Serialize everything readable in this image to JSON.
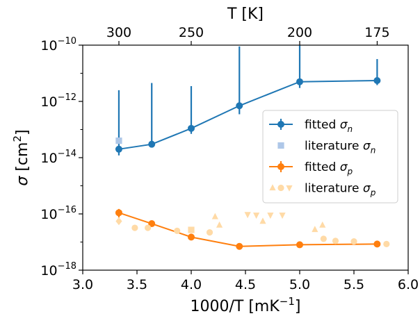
{
  "chart_data": {
    "type": "scatter",
    "xlabel": "1000/T [mK",
    "xlabel_sup": "−1",
    "xlabel_suffix": "]",
    "x2label": "T [K]",
    "ylabel_sym": "σ",
    "ylabel_unit": " [cm",
    "ylabel_sup": "2",
    "ylabel_suffix": "]",
    "xlim": [
      3.0,
      6.0
    ],
    "ylim_log10": [
      -18,
      -10
    ],
    "log_y": true,
    "x_ticks": [
      {
        "value": 3.0,
        "label": "3.0"
      },
      {
        "value": 3.5,
        "label": "3.5"
      },
      {
        "value": 4.0,
        "label": "4.0"
      },
      {
        "value": 4.5,
        "label": "4.5"
      },
      {
        "value": 5.0,
        "label": "5.0"
      },
      {
        "value": 5.5,
        "label": "5.5"
      },
      {
        "value": 6.0,
        "label": "6.0"
      }
    ],
    "y_ticks": [
      {
        "exp": -10,
        "base": "10",
        "sup": "−10"
      },
      {
        "exp": -12,
        "base": "10",
        "sup": "−12"
      },
      {
        "exp": -14,
        "base": "10",
        "sup": "−14"
      },
      {
        "exp": -16,
        "base": "10",
        "sup": "−16"
      },
      {
        "exp": -18,
        "base": "10",
        "sup": "−18"
      }
    ],
    "top_ticks": [
      {
        "label": "300",
        "T": 300
      },
      {
        "label": "250",
        "T": 250
      },
      {
        "label": "200",
        "T": 200
      },
      {
        "label": "175",
        "T": 175
      }
    ],
    "grid": false,
    "legend_position": "center-right",
    "series": [
      {
        "name": "fitted σ",
        "name_sub": "n",
        "kind": "line-errorbar",
        "color": "#1f77b4",
        "points": [
          {
            "x": 3.333,
            "y": 2e-14,
            "ylo": 1.2e-14,
            "yhi": 2.5e-12
          },
          {
            "x": 3.636,
            "y": 3e-14,
            "ylo": 2.4e-14,
            "yhi": 4.5e-12
          },
          {
            "x": 4.0,
            "y": 1.1e-13,
            "ylo": 7e-14,
            "yhi": 3.5e-12
          },
          {
            "x": 4.444,
            "y": 7e-13,
            "ylo": 3.5e-13,
            "yhi": 9e-11
          },
          {
            "x": 5.0,
            "y": 5e-12,
            "ylo": 3e-12,
            "yhi": 1e-10
          },
          {
            "x": 5.714,
            "y": 5.5e-12,
            "ylo": 3.8e-12,
            "yhi": 3.2e-11
          }
        ]
      },
      {
        "name": "literature σ",
        "name_sub": "n",
        "kind": "markers",
        "marker": "square",
        "color": "#aec7e8",
        "points": [
          {
            "x": 3.333,
            "y": 4e-14
          }
        ]
      },
      {
        "name": "fitted σ",
        "name_sub": "p",
        "kind": "line-errorbar",
        "color": "#ff7f0e",
        "points": [
          {
            "x": 3.333,
            "y": 1.1e-16,
            "ylo": 7.5e-17,
            "yhi": 1.5e-16
          },
          {
            "x": 3.636,
            "y": 4.5e-17,
            "ylo": 4e-17,
            "yhi": 5e-17
          },
          {
            "x": 4.0,
            "y": 1.5e-17,
            "ylo": 1.4e-17,
            "yhi": 1.6e-17
          },
          {
            "x": 4.444,
            "y": 7e-18,
            "ylo": 6.7e-18,
            "yhi": 7.3e-18
          },
          {
            "x": 5.0,
            "y": 8e-18,
            "ylo": 7.7e-18,
            "yhi": 8.3e-18
          },
          {
            "x": 5.714,
            "y": 8.5e-18,
            "ylo": 8.2e-18,
            "yhi": 8.8e-18
          }
        ]
      },
      {
        "name": "literature σ",
        "name_sub": "p",
        "kind": "markers",
        "marker": "mixed",
        "color": "#ffdaa6",
        "points": [
          {
            "x": 3.333,
            "y": 5.5e-17,
            "m": "diamond"
          },
          {
            "x": 3.48,
            "y": 3.2e-17,
            "m": "circle"
          },
          {
            "x": 3.6,
            "y": 3.2e-17,
            "m": "circle"
          },
          {
            "x": 3.87,
            "y": 2.5e-17,
            "m": "circle"
          },
          {
            "x": 4.0,
            "y": 2.7e-17,
            "m": "square"
          },
          {
            "x": 4.17,
            "y": 2.2e-17,
            "m": "circle"
          },
          {
            "x": 4.22,
            "y": 8e-17,
            "m": "triangle-up"
          },
          {
            "x": 4.26,
            "y": 4e-17,
            "m": "triangle-up"
          },
          {
            "x": 4.52,
            "y": 9.5e-17,
            "m": "triangle-down"
          },
          {
            "x": 4.6,
            "y": 9e-17,
            "m": "triangle-down"
          },
          {
            "x": 4.66,
            "y": 5.5e-17,
            "m": "triangle-up"
          },
          {
            "x": 4.73,
            "y": 9e-17,
            "m": "triangle-down"
          },
          {
            "x": 4.84,
            "y": 9e-17,
            "m": "triangle-down"
          },
          {
            "x": 5.14,
            "y": 2.8e-17,
            "m": "triangle-up"
          },
          {
            "x": 5.21,
            "y": 4e-17,
            "m": "triangle-up"
          },
          {
            "x": 5.22,
            "y": 1.3e-17,
            "m": "circle"
          },
          {
            "x": 5.33,
            "y": 1.1e-17,
            "m": "circle"
          },
          {
            "x": 5.5,
            "y": 1.05e-17,
            "m": "circle"
          },
          {
            "x": 5.8,
            "y": 8.5e-18,
            "m": "circle"
          }
        ]
      }
    ]
  }
}
